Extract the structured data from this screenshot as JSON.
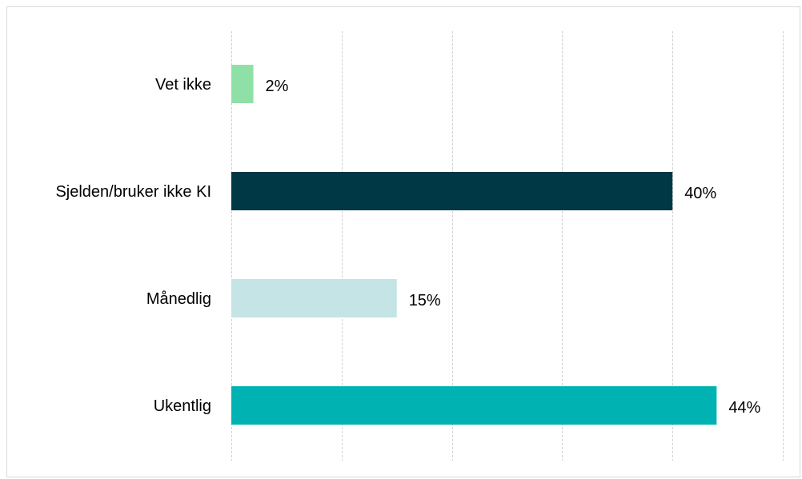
{
  "chart_data": {
    "type": "bar",
    "orientation": "horizontal",
    "categories": [
      "Vet ikke",
      "Sjelden/bruker ikke KI",
      "Månedlig",
      "Ukentlig"
    ],
    "values": [
      2,
      40,
      15,
      44
    ],
    "value_labels": [
      "2%",
      "40%",
      "15%",
      "44%"
    ],
    "colors": [
      "#8fe0a6",
      "#003846",
      "#c5e4e6",
      "#00b2b2"
    ],
    "xlim": [
      0,
      50
    ],
    "grid": true,
    "title": "",
    "xlabel": "",
    "ylabel": ""
  }
}
